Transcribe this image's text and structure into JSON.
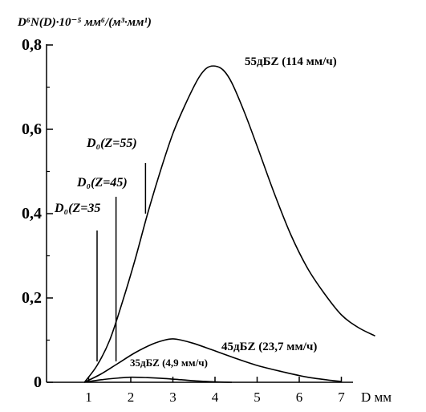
{
  "chart_data": {
    "type": "line",
    "title": "",
    "ylabel": "D⁶N(D)·10⁻⁵ мм⁶/(м³·мм¹)",
    "xlabel": "D мм",
    "xlim": [
      0,
      7.8
    ],
    "ylim": [
      0,
      0.8
    ],
    "x_ticks": [
      1,
      2,
      3,
      4,
      5,
      6,
      7
    ],
    "x_tick_labels": [
      "1",
      "2",
      "3",
      "4",
      "5",
      "6",
      "7"
    ],
    "y_ticks": [
      0,
      0.2,
      0.4,
      0.6,
      0.8
    ],
    "y_tick_labels": [
      "0",
      "0,2",
      "0,4",
      "0,6",
      "0,8"
    ],
    "grid": false,
    "series": [
      {
        "name": "55дБZ (114 мм/ч)",
        "x": [
          0.9,
          1.2,
          1.5,
          1.8,
          2.1,
          2.4,
          2.7,
          3.0,
          3.3,
          3.6,
          3.8,
          4.0,
          4.2,
          4.4,
          4.7,
          5.0,
          5.4,
          5.8,
          6.2,
          6.6,
          7.0,
          7.4,
          7.8
        ],
        "y": [
          0.0,
          0.04,
          0.1,
          0.19,
          0.29,
          0.4,
          0.5,
          0.59,
          0.66,
          0.72,
          0.745,
          0.75,
          0.74,
          0.71,
          0.64,
          0.56,
          0.45,
          0.35,
          0.27,
          0.21,
          0.16,
          0.13,
          0.11
        ]
      },
      {
        "name": "45дБZ (23,7 мм/ч)",
        "x": [
          0.9,
          1.3,
          1.7,
          2.1,
          2.5,
          2.8,
          3.0,
          3.2,
          3.5,
          3.9,
          4.4,
          5.0,
          5.6,
          6.2,
          6.8,
          7.0
        ],
        "y": [
          0.0,
          0.02,
          0.045,
          0.07,
          0.09,
          0.1,
          0.103,
          0.1,
          0.092,
          0.078,
          0.06,
          0.04,
          0.025,
          0.012,
          0.004,
          0.002
        ]
      },
      {
        "name": "35дБZ (4,9 мм/ч)",
        "x": [
          0.9,
          1.3,
          1.7,
          2.0,
          2.4,
          2.8,
          3.2,
          3.6,
          4.0,
          4.4
        ],
        "y": [
          0.0,
          0.006,
          0.01,
          0.012,
          0.011,
          0.009,
          0.006,
          0.003,
          0.001,
          0.0
        ]
      }
    ],
    "annotations": [
      {
        "label": "D₀(Z=35",
        "x": 1.2,
        "y_top": 0.36
      },
      {
        "label": "D₀(Z=45)",
        "x": 1.65,
        "y_top": 0.44
      },
      {
        "label": "D₀(Z=55)",
        "x": 2.35,
        "y_top": 0.52,
        "y_bottom": 0.4
      }
    ]
  }
}
